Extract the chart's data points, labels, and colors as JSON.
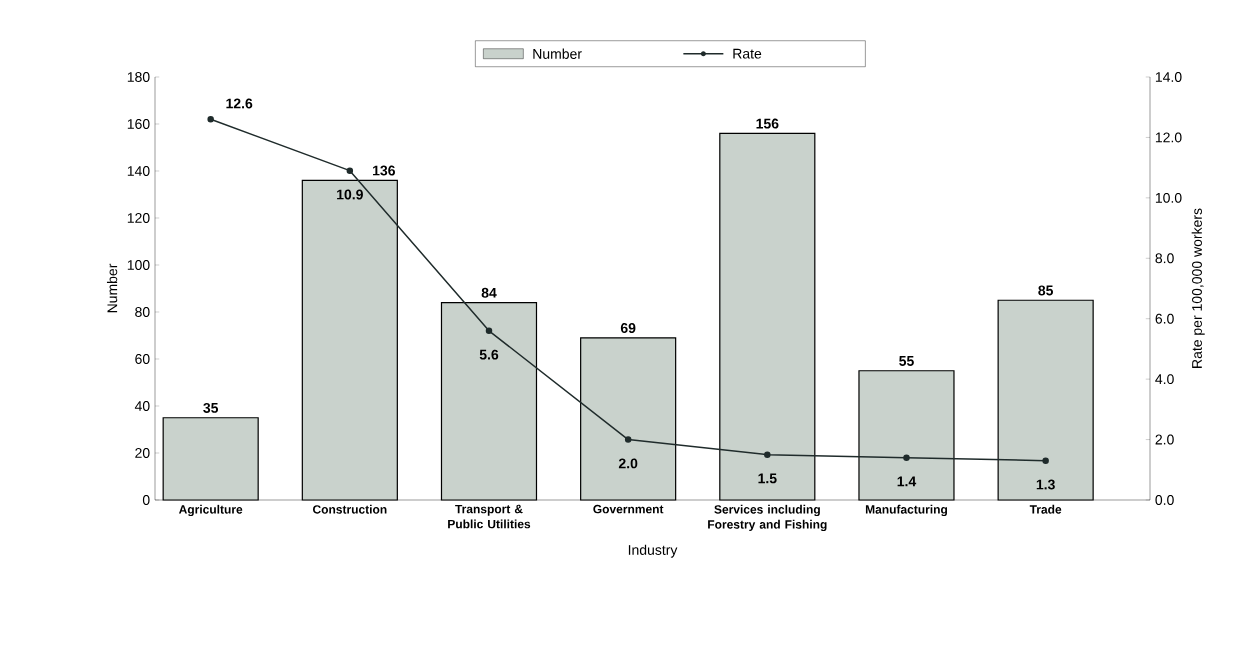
{
  "chart_data": {
    "type": "bar",
    "xlabel": "Industry",
    "ylabel": "Number",
    "y2label": "Rate per 100,000 workers",
    "categories": [
      "Agriculture",
      "Construction",
      "Transport & Public Utilities",
      "Government",
      "Services including Forestry and Fishing",
      "Manufacturing",
      "Trade"
    ],
    "series": [
      {
        "name": "Number",
        "color": "#c9d2cc",
        "values": [
          35,
          136,
          84,
          69,
          156,
          55,
          85
        ]
      },
      {
        "name": "Rate",
        "type": "line",
        "axis": "y2",
        "color": "#1f2b2b",
        "marker": "circle",
        "values": [
          12.6,
          10.9,
          5.6,
          2.0,
          1.5,
          1.4,
          1.3
        ],
        "value_labels": [
          "12.6",
          "10.9",
          "5.6",
          "2.0",
          "1.5",
          "1.4",
          "1.3"
        ]
      }
    ],
    "ylim": [
      0,
      180
    ],
    "yticks": [
      0,
      20,
      40,
      60,
      80,
      100,
      120,
      140,
      160,
      180
    ],
    "y2lim": [
      0,
      14
    ],
    "y2ticks": [
      {
        "value": 0,
        "label": "0.0"
      },
      {
        "value": 2,
        "label": "2.0"
      },
      {
        "value": 4,
        "label": "4.0"
      },
      {
        "value": 6,
        "label": "6.0"
      },
      {
        "value": 8,
        "label": "8.0"
      },
      {
        "value": 10,
        "label": "10.0"
      },
      {
        "value": 12,
        "label": "12.0"
      },
      {
        "value": 14,
        "label": "14.0"
      }
    ],
    "data_labels": true,
    "legend": "top",
    "grid": false
  }
}
